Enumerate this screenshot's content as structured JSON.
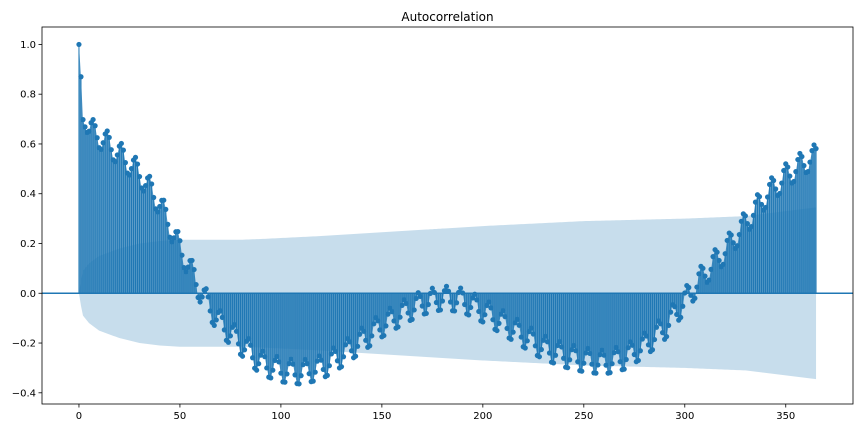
{
  "chart_data": {
    "type": "stem",
    "title": "Autocorrelation",
    "xlabel": "",
    "ylabel": "",
    "xlim": [
      -18.3,
      383.3
    ],
    "ylim": [
      -0.445,
      1.07
    ],
    "x_ticks": [
      0,
      50,
      100,
      150,
      200,
      250,
      300,
      350
    ],
    "x_tick_labels": [
      "0",
      "50",
      "100",
      "150",
      "200",
      "250",
      "300",
      "350"
    ],
    "y_ticks": [
      1.0,
      0.8,
      0.6,
      0.4,
      0.2,
      0.0,
      -0.2,
      -0.4
    ],
    "y_tick_labels": [
      "1.0",
      "0.8",
      "0.6",
      "0.4",
      "0.2",
      "0.0",
      "−0.2",
      "−0.4"
    ],
    "series_color": "#1f77b4",
    "confidence_color": "#1f77b4",
    "max_lag": 365,
    "acf_shape": {
      "anchor_lags": [
        0,
        1,
        2,
        5,
        10,
        20,
        30,
        40,
        50,
        55,
        60,
        65,
        70,
        80,
        90,
        100,
        110,
        120,
        130,
        140,
        150,
        160,
        170,
        180,
        190,
        200,
        210,
        220,
        230,
        240,
        250,
        260,
        270,
        280,
        290,
        300,
        310,
        320,
        330,
        340,
        350,
        360,
        365
      ],
      "anchor_values": [
        1.0,
        0.87,
        0.7,
        0.66,
        0.63,
        0.56,
        0.48,
        0.36,
        0.18,
        0.1,
        0.01,
        -0.06,
        -0.12,
        -0.2,
        -0.28,
        -0.31,
        -0.32,
        -0.3,
        -0.25,
        -0.19,
        -0.13,
        -0.08,
        -0.04,
        -0.02,
        -0.03,
        -0.07,
        -0.12,
        -0.17,
        -0.22,
        -0.25,
        -0.27,
        -0.28,
        -0.26,
        -0.21,
        -0.14,
        -0.03,
        0.08,
        0.17,
        0.28,
        0.39,
        0.47,
        0.53,
        0.55
      ],
      "weekly_amplitude": 0.05
    },
    "confidence_band": {
      "lags": [
        0,
        1,
        2,
        5,
        10,
        20,
        30,
        40,
        50,
        60,
        70,
        80,
        90,
        100,
        120,
        150,
        200,
        250,
        300,
        330,
        365
      ],
      "upper": [
        0.0,
        0.05,
        0.09,
        0.12,
        0.15,
        0.18,
        0.2,
        0.21,
        0.215,
        0.215,
        0.215,
        0.215,
        0.218,
        0.222,
        0.23,
        0.245,
        0.27,
        0.29,
        0.3,
        0.31,
        0.345
      ]
    }
  }
}
